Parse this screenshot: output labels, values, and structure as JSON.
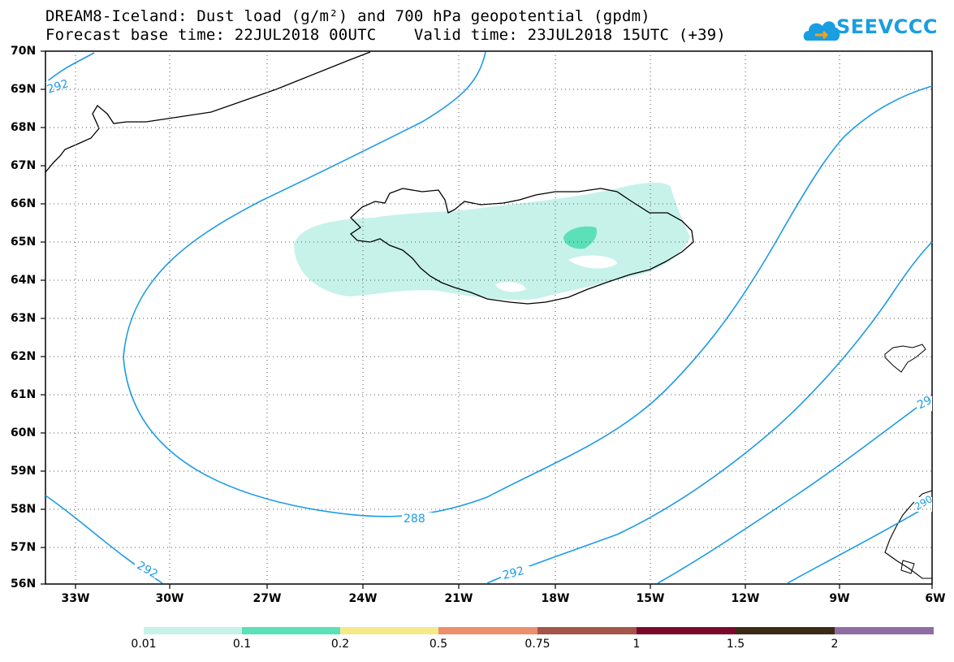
{
  "title": {
    "line1": "DREAM8-Iceland: Dust load (g/m²) and 700 hPa geopotential (gpdm)",
    "line2": "Forecast base time: 22JUL2018 00UTC    Valid time: 23JUL2018 15UTC (+39)"
  },
  "logo": {
    "text": "SEEVCCC",
    "icon": "cloud-icon",
    "color": "#1a9ee0"
  },
  "map": {
    "lat_labels": [
      "70N",
      "69N",
      "68N",
      "67N",
      "66N",
      "65N",
      "64N",
      "63N",
      "62N",
      "61N",
      "60N",
      "59N",
      "58N",
      "57N",
      "56N"
    ],
    "lon_labels": [
      "33W",
      "30W",
      "27W",
      "24W",
      "21W",
      "18W",
      "15W",
      "12W",
      "9W",
      "6W"
    ],
    "contour_color": "#1d9be6",
    "contour_labels": [
      "292",
      "288",
      "292",
      "292",
      "29",
      "290"
    ]
  },
  "colorbar": {
    "labels": [
      "0.01",
      "0.1",
      "0.2",
      "0.5",
      "0.75",
      "1",
      "1.5",
      "2"
    ],
    "colors": [
      "#c6f2ea",
      "#5ce0b8",
      "#f6e98a",
      "#eb8f6c",
      "#a55448",
      "#7a0a2c",
      "#3b2a14",
      "#8f6da3"
    ]
  }
}
